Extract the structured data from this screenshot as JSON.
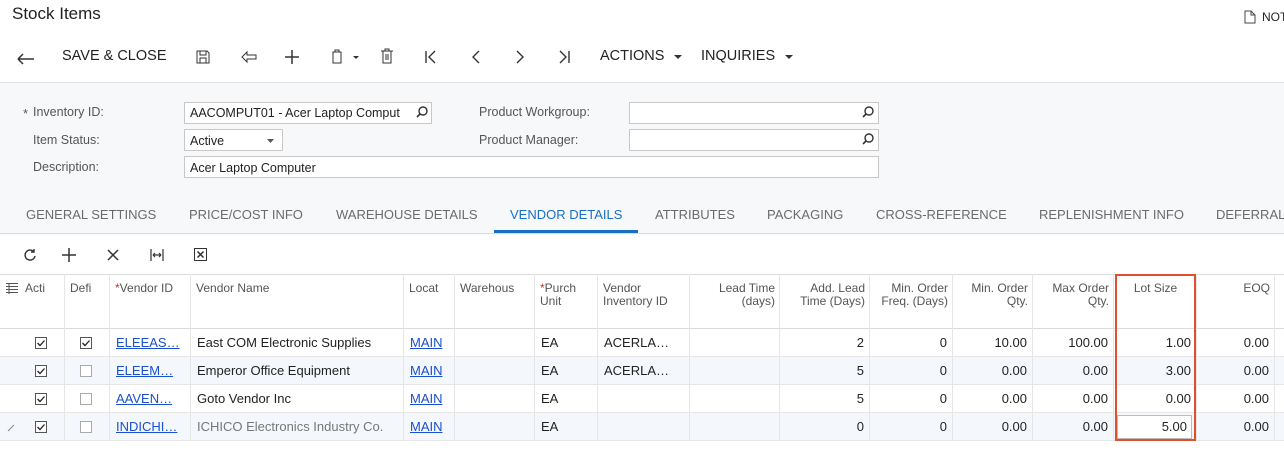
{
  "header": {
    "title": "Stock Items",
    "notes": "NOTES"
  },
  "toolbar": {
    "save_close": "SAVE & CLOSE",
    "actions": "ACTIONS",
    "inquiries": "INQUIRIES"
  },
  "form": {
    "required_mark": "*",
    "inventory_id": {
      "label": "Inventory ID:",
      "value": "AACOMPUT01 - Acer Laptop Comput"
    },
    "item_status": {
      "label": "Item Status:",
      "value": "Active"
    },
    "description": {
      "label": "Description:",
      "value": "Acer Laptop Computer"
    },
    "product_workgroup": {
      "label": "Product Workgroup:"
    },
    "product_manager": {
      "label": "Product Manager:"
    }
  },
  "tabs": {
    "items": [
      "GENERAL SETTINGS",
      "PRICE/COST INFO",
      "WAREHOUSE DETAILS",
      "VENDOR DETAILS",
      "ATTRIBUTES",
      "PACKAGING",
      "CROSS-REFERENCE",
      "REPLENISHMENT INFO",
      "DEFERRAL"
    ],
    "active": 3
  },
  "grid": {
    "columns": [
      {
        "label": "Acti"
      },
      {
        "label": "Defi"
      },
      {
        "label": "Vendor ID",
        "required": true
      },
      {
        "label": "Vendor Name"
      },
      {
        "label": "Locat"
      },
      {
        "label": "Warehous"
      },
      {
        "label": "Purch Unit",
        "required": true
      },
      {
        "label": "Vendor Inventory ID"
      },
      {
        "label": "Lead Time (days)"
      },
      {
        "label": "Add. Lead Time (Days)"
      },
      {
        "label": "Min. Order Freq. (Days)"
      },
      {
        "label": "Min. Order Qty."
      },
      {
        "label": "Max Order Qty."
      },
      {
        "label": "Lot Size"
      },
      {
        "label": "EOQ"
      }
    ],
    "rows": [
      {
        "cells": [
          true,
          true,
          "ELEEAS…",
          "East COM Electronic Supplies",
          "MAIN",
          null,
          "EA",
          "ACERLA…",
          null,
          "2",
          "0",
          "10.00",
          "100.00",
          "1.00",
          "0.00"
        ]
      },
      {
        "cells": [
          true,
          false,
          "ELEEM…",
          "Emperor Office Equipment",
          "MAIN",
          null,
          "EA",
          "ACERLA…",
          null,
          "5",
          "0",
          "0.00",
          "0.00",
          "3.00",
          "0.00"
        ]
      },
      {
        "cells": [
          true,
          false,
          "AAVEN…",
          "Goto Vendor Inc",
          "MAIN",
          null,
          "EA",
          null,
          null,
          "5",
          "0",
          "0.00",
          "0.00",
          "0.00",
          "0.00"
        ]
      },
      {
        "cells": [
          true,
          false,
          "INDICHI…",
          "ICHICO Electronics Industry Co.",
          "MAIN",
          null,
          "EA",
          null,
          null,
          "0",
          "0",
          "0.00",
          "0.00",
          "5.00",
          "0.00"
        ],
        "editing": true
      }
    ]
  }
}
